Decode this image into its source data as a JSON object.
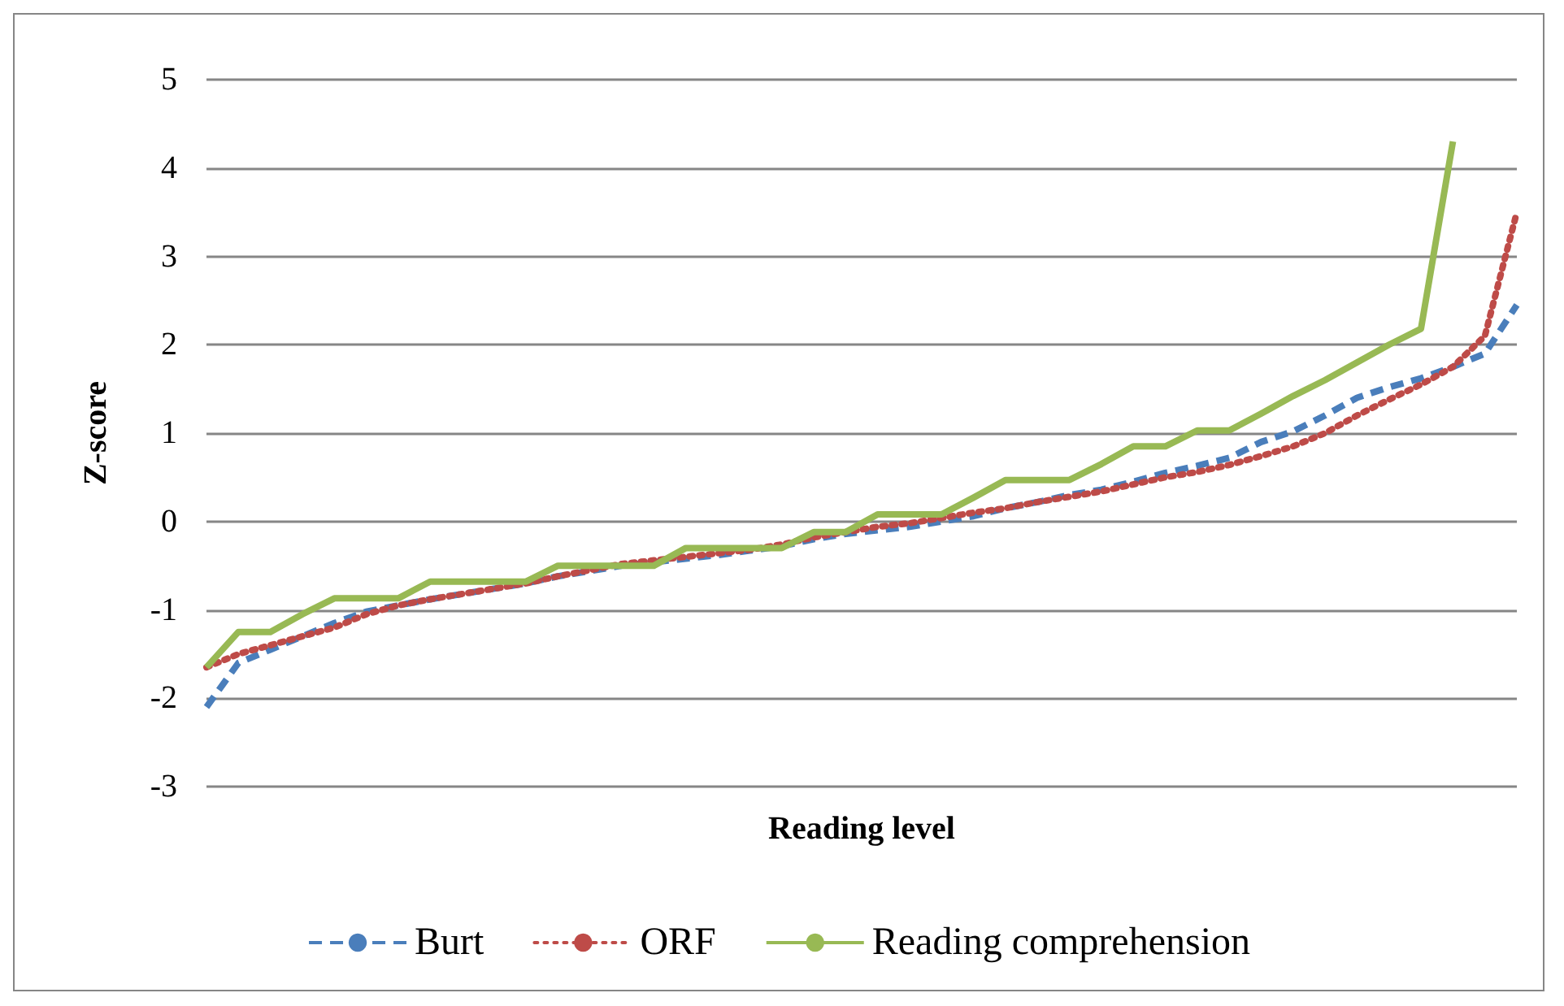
{
  "chart_data": {
    "type": "line",
    "xlabel": "Reading level",
    "ylabel": "Z-score",
    "categories": [
      null,
      null,
      null,
      null,
      null,
      null,
      null,
      null,
      null,
      null,
      null,
      null,
      null,
      null,
      null,
      null,
      null,
      null,
      null,
      null,
      null,
      null,
      null,
      null,
      null,
      null,
      null,
      null,
      null,
      null,
      null,
      null,
      null,
      null,
      null,
      null,
      null,
      null,
      null,
      null,
      null,
      null
    ],
    "series": [
      {
        "name": "Burt",
        "color": "#4a7ebb",
        "line_style": "dashed",
        "values": [
          -2.1,
          -1.6,
          -1.45,
          -1.3,
          -1.15,
          -1.02,
          -0.95,
          -0.88,
          -0.82,
          -0.76,
          -0.7,
          -0.62,
          -0.56,
          -0.5,
          -0.46,
          -0.42,
          -0.38,
          -0.33,
          -0.28,
          -0.2,
          -0.14,
          -0.1,
          -0.06,
          0,
          0.06,
          0.15,
          0.22,
          0.3,
          0.36,
          0.45,
          0.55,
          0.63,
          0.72,
          0.9,
          1.02,
          1.2,
          1.4,
          1.52,
          1.62,
          1.75,
          1.9,
          2.45
        ]
      },
      {
        "name": "ORF",
        "color": "#be4b48",
        "line_style": "dotted",
        "values": [
          -1.65,
          -1.5,
          -1.4,
          -1.3,
          -1.2,
          -1.05,
          -0.95,
          -0.88,
          -0.82,
          -0.76,
          -0.7,
          -0.62,
          -0.55,
          -0.48,
          -0.44,
          -0.4,
          -0.36,
          -0.32,
          -0.26,
          -0.18,
          -0.12,
          -0.06,
          -0.02,
          0.04,
          0.1,
          0.15,
          0.22,
          0.28,
          0.34,
          0.42,
          0.5,
          0.56,
          0.64,
          0.74,
          0.85,
          1.0,
          1.2,
          1.38,
          1.55,
          1.75,
          2.1,
          3.5
        ]
      },
      {
        "name": "Reading comprehension",
        "color": "#98b954",
        "line_style": "solid",
        "values": [
          -1.65,
          -1.25,
          -1.25,
          -1.05,
          -0.87,
          -0.87,
          -0.87,
          -0.68,
          -0.68,
          -0.68,
          -0.68,
          -0.5,
          -0.5,
          -0.5,
          -0.5,
          -0.3,
          -0.3,
          -0.3,
          -0.3,
          -0.12,
          -0.12,
          0.08,
          0.08,
          0.08,
          0.27,
          0.47,
          0.47,
          0.47,
          0.65,
          0.85,
          0.85,
          1.03,
          1.03,
          1.22,
          1.42,
          1.6,
          1.8,
          2.0,
          2.18,
          4.3,
          null,
          null
        ]
      }
    ],
    "ylim": [
      -3,
      5
    ],
    "yticks": [
      -3,
      -2,
      -1,
      0,
      1,
      2,
      3,
      4,
      5
    ],
    "grid": "y",
    "legend": "bottom",
    "tick_labels": "y",
    "marker": "none"
  }
}
